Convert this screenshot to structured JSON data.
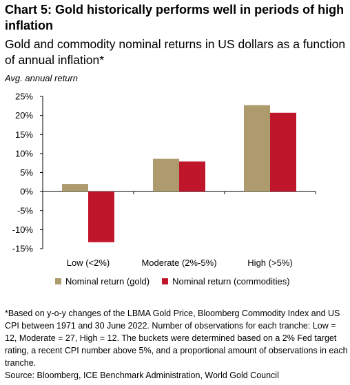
{
  "header": {
    "title": "Chart 5: Gold historically performs well in periods of high inflation",
    "subtitle": "Gold and commodity nominal returns in US dollars as a function of annual inflation*",
    "unit_label": "Avg. annual return"
  },
  "chart_data": {
    "type": "bar",
    "title": "Chart 5: Gold historically performs well in periods of high inflation",
    "subtitle": "Gold and commodity nominal returns in US dollars as a function of annual inflation*",
    "ylabel": "Avg. annual return",
    "xlabel": "",
    "categories": [
      "Low (<2%)",
      "Moderate (2%-5%)",
      "High (>5%)"
    ],
    "series": [
      {
        "name": "Nominal return (gold)",
        "color": "#ad9b6e",
        "values": [
          2.0,
          8.6,
          22.7
        ]
      },
      {
        "name": "Nominal return (commodities)",
        "color": "#c0162c",
        "values": [
          -13.3,
          7.9,
          20.7
        ]
      }
    ],
    "ylim": [
      -15,
      25
    ],
    "yticks": [
      25,
      20,
      15,
      10,
      5,
      0,
      -5,
      -10,
      -15
    ],
    "ytick_labels": [
      "25%",
      "20%",
      "15%",
      "10%",
      "5%",
      "0%",
      "-5%",
      "-10%",
      "-15%"
    ],
    "grid": false,
    "legend_position": "bottom"
  },
  "footer": {
    "notes": "*Based on y-o-y changes of the LBMA Gold Price, Bloomberg Commodity Index and US CPI between 1971 and 30 June 2022. Number of observations for each tranche: Low = 12, Moderate = 27, High = 12. The buckets were determined based on a 2% Fed target rating, a recent CPI number above 5%, and a proportional amount of observations in each tranche.",
    "source": "Source: Bloomberg, ICE Benchmark Administration, World Gold Council"
  }
}
